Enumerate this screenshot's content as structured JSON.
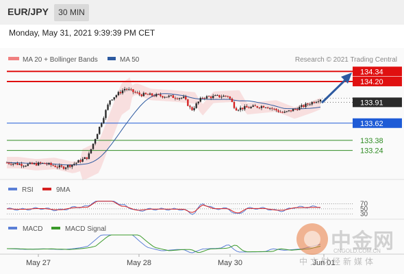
{
  "header": {
    "symbol": "EUR/JPY",
    "timeframe": "30 MIN"
  },
  "datetime": "Monday, May 31, 2021 9:39:39 PM CET",
  "legend": {
    "bb": "MA 20 + Bollinger Bands",
    "bb_color": "#f08080",
    "ma50": "MA 50",
    "ma50_color": "#2d5aa0",
    "credit": "Research © 2021 Trading Central"
  },
  "rsi_legend": {
    "rsi": "RSI",
    "rsi_color": "#5b7fd6",
    "ma": "9MA",
    "ma_color": "#d62020"
  },
  "macd_legend": {
    "macd": "MACD",
    "macd_color": "#5b7fd6",
    "signal": "MACD Signal",
    "signal_color": "#3a9a2a"
  },
  "watermark": {
    "cn": "中金网",
    "url": "CNGOLD.COM.CN",
    "sub": "中文财经新媒体"
  },
  "chart_data": {
    "type": "candlestick",
    "ylim": [
      132.95,
      134.4
    ],
    "x_labels": [
      "May 27",
      "May 28",
      "May 30",
      "Jun 01"
    ],
    "levels": [
      {
        "value": 134.34,
        "label": "134.34",
        "kind": "resistance",
        "color": "#e01010"
      },
      {
        "value": 134.2,
        "label": "134.20",
        "kind": "resistance",
        "color": "#e01010"
      },
      {
        "value": 133.91,
        "label": "133.91",
        "kind": "last",
        "color": "#2a2a2a"
      },
      {
        "value": 133.62,
        "label": "133.62",
        "kind": "pivot",
        "color": "#1e5bd6"
      },
      {
        "value": 133.38,
        "label": "133.38",
        "kind": "support",
        "color": "#2e8b22"
      },
      {
        "value": 133.24,
        "label": "133.24",
        "kind": "support",
        "color": "#2e8b22"
      }
    ],
    "price_path": [
      [
        0,
        133.07
      ],
      [
        0.05,
        133.04
      ],
      [
        0.1,
        133.06
      ],
      [
        0.15,
        133.0
      ],
      [
        0.18,
        133.05
      ],
      [
        0.22,
        133.15
      ],
      [
        0.25,
        133.55
      ],
      [
        0.28,
        133.95
      ],
      [
        0.32,
        134.1
      ],
      [
        0.36,
        134.02
      ],
      [
        0.42,
        134.0
      ],
      [
        0.48,
        133.97
      ],
      [
        0.5,
        133.8
      ],
      [
        0.53,
        133.98
      ],
      [
        0.6,
        134.0
      ],
      [
        0.62,
        133.82
      ],
      [
        0.7,
        133.86
      ],
      [
        0.75,
        133.76
      ],
      [
        0.8,
        133.85
      ],
      [
        0.85,
        133.96
      ]
    ],
    "rsi_levels": [
      70,
      50,
      30
    ]
  }
}
